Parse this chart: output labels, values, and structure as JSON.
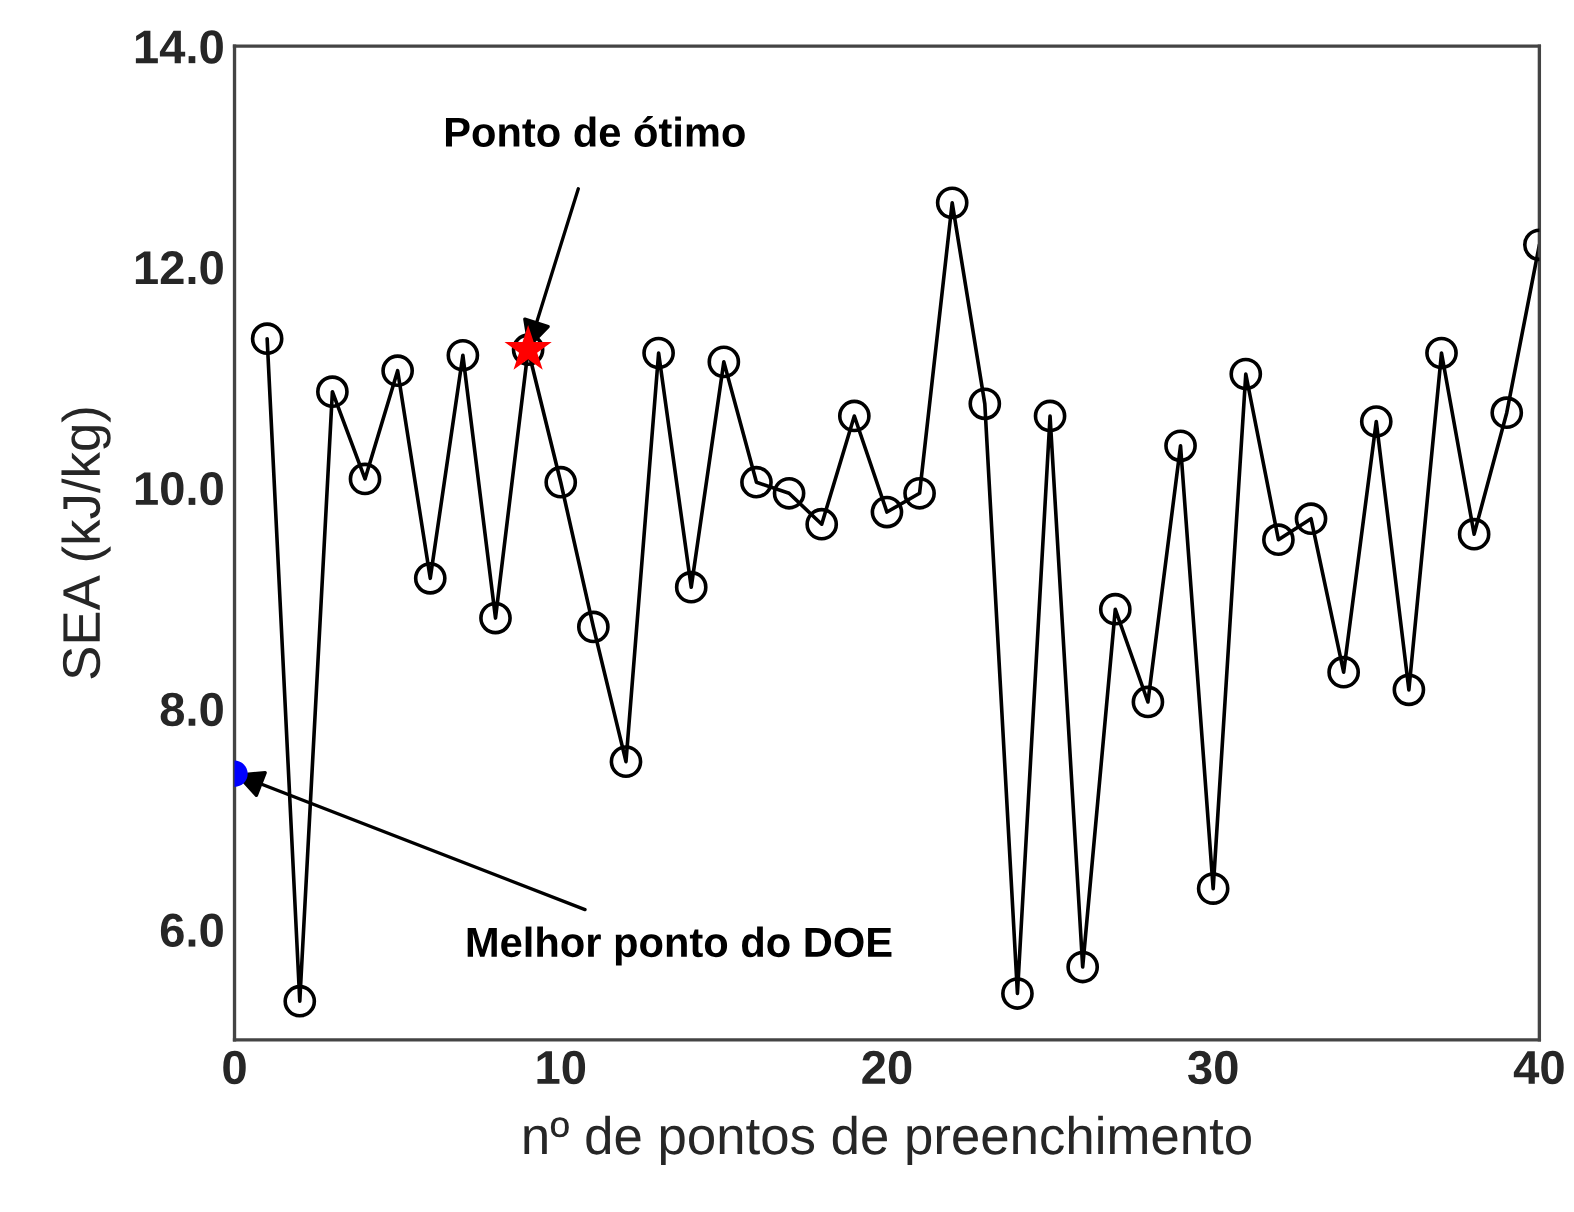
{
  "chart_data": {
    "type": "line",
    "xlabel": "nº de pontos de preenchimento",
    "ylabel": "SEA (kJ/kg)",
    "xlim": [
      0,
      40
    ],
    "ylim": [
      5,
      14
    ],
    "xticks": [
      0,
      10,
      20,
      30,
      40
    ],
    "yticks": [
      {
        "value": 6,
        "label": "6.0"
      },
      {
        "value": 8,
        "label": "8.0"
      },
      {
        "value": 10,
        "label": "10.0"
      },
      {
        "value": 12,
        "label": "12.0"
      },
      {
        "value": 14,
        "label": "14.0"
      }
    ],
    "grid": false,
    "legend": false,
    "series": [
      {
        "color": "#000000",
        "marker": "circle",
        "line_style": "solid",
        "x": [
          1,
          2,
          3,
          4,
          5,
          6,
          7,
          8,
          9,
          10,
          11,
          12,
          13,
          14,
          15,
          16,
          17,
          18,
          19,
          20,
          21,
          22,
          23,
          24,
          25,
          26,
          27,
          28,
          29,
          30,
          31,
          32,
          33,
          34,
          35,
          36,
          37,
          38,
          39,
          40
        ],
        "values": [
          11.35,
          5.35,
          10.87,
          10.08,
          11.06,
          9.18,
          11.2,
          8.82,
          11.25,
          10.05,
          8.74,
          7.52,
          11.22,
          9.1,
          11.14,
          10.05,
          9.95,
          9.67,
          10.65,
          9.78,
          9.95,
          12.58,
          10.76,
          5.42,
          10.65,
          5.66,
          8.9,
          8.06,
          10.38,
          6.37,
          11.03,
          9.53,
          9.72,
          8.33,
          10.6,
          8.17,
          11.22,
          9.58,
          10.68,
          12.2
        ]
      },
      {
        "type": "scatter",
        "color": "#ff0000",
        "marker": "star",
        "x": [
          9
        ],
        "values": [
          11.25
        ]
      },
      {
        "type": "scatter",
        "color": "#0000ff",
        "marker": "circle",
        "x": [
          0
        ],
        "values": [
          7.41
        ]
      }
    ],
    "annotations": [
      {
        "text": "Ponto de ótimo",
        "x": 9,
        "y": 11.25
      },
      {
        "text": "Melhor ponto do DOE",
        "x": 0,
        "y": 7.41
      }
    ]
  }
}
